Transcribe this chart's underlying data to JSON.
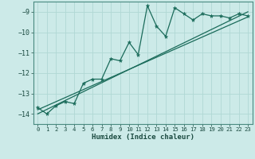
{
  "title": "",
  "xlabel": "Humidex (Indice chaleur)",
  "bg_color": "#cceae8",
  "line_color": "#1a6b5a",
  "grid_color": "#b0d8d4",
  "xlim": [
    -0.5,
    23.5
  ],
  "ylim": [
    -14.5,
    -8.5
  ],
  "yticks": [
    -14,
    -13,
    -12,
    -11,
    -10,
    -9
  ],
  "xticks": [
    0,
    1,
    2,
    3,
    4,
    5,
    6,
    7,
    8,
    9,
    10,
    11,
    12,
    13,
    14,
    15,
    16,
    17,
    18,
    19,
    20,
    21,
    22,
    23
  ],
  "main_x": [
    0,
    1,
    2,
    3,
    4,
    5,
    6,
    7,
    8,
    9,
    10,
    11,
    12,
    13,
    14,
    15,
    16,
    17,
    18,
    19,
    20,
    21,
    22,
    23
  ],
  "main_y": [
    -13.7,
    -14.0,
    -13.6,
    -13.4,
    -13.5,
    -12.5,
    -12.3,
    -12.3,
    -11.3,
    -11.4,
    -10.5,
    -11.1,
    -8.7,
    -9.7,
    -10.2,
    -8.8,
    -9.1,
    -9.4,
    -9.1,
    -9.2,
    -9.2,
    -9.3,
    -9.1,
    -9.2
  ],
  "line1_x": [
    0,
    23
  ],
  "line1_y": [
    -14.0,
    -9.0
  ],
  "line2_x": [
    0,
    23
  ],
  "line2_y": [
    -13.8,
    -9.25
  ]
}
